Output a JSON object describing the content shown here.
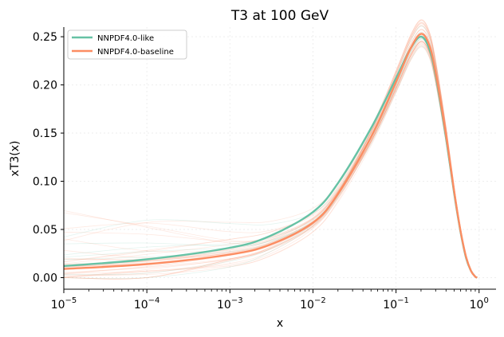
{
  "chart_data": {
    "type": "line",
    "title": "T3 at 100 GeV",
    "xlabel": "x",
    "ylabel": "xT3(x)",
    "x_scale": "log",
    "xlim": [
      1e-05,
      1.6
    ],
    "ylim": [
      -0.012,
      0.26
    ],
    "x_ticks": [
      {
        "value": 1e-05,
        "base": "10",
        "exp": "−5"
      },
      {
        "value": 0.0001,
        "base": "10",
        "exp": "−4"
      },
      {
        "value": 0.001,
        "base": "10",
        "exp": "−3"
      },
      {
        "value": 0.01,
        "base": "10",
        "exp": "−2"
      },
      {
        "value": 0.1,
        "base": "10",
        "exp": "−1"
      },
      {
        "value": 1,
        "base": "10",
        "exp": "0"
      }
    ],
    "y_ticks": [
      {
        "value": 0.0,
        "label": "0.00"
      },
      {
        "value": 0.05,
        "label": "0.05"
      },
      {
        "value": 0.1,
        "label": "0.10"
      },
      {
        "value": 0.15,
        "label": "0.15"
      },
      {
        "value": 0.2,
        "label": "0.20"
      },
      {
        "value": 0.25,
        "label": "0.25"
      }
    ],
    "grid": true,
    "legend_position": "top-left",
    "series": [
      {
        "name": "NNPDF4.0-like",
        "color": "#66c2a5",
        "x": [
          1e-05,
          0.0001,
          0.001,
          0.003,
          0.01,
          0.02,
          0.05,
          0.1,
          0.15,
          0.2,
          0.25,
          0.3,
          0.4,
          0.5,
          0.6,
          0.7,
          0.8,
          0.9,
          0.95
        ],
        "y": [
          0.012,
          0.019,
          0.031,
          0.043,
          0.068,
          0.098,
          0.155,
          0.207,
          0.238,
          0.25,
          0.238,
          0.21,
          0.145,
          0.088,
          0.047,
          0.02,
          0.007,
          0.001,
          0.0
        ]
      },
      {
        "name": "NNPDF4.0-baseline",
        "color": "#fc8d62",
        "x": [
          1e-05,
          0.0001,
          0.001,
          0.003,
          0.01,
          0.02,
          0.05,
          0.1,
          0.15,
          0.2,
          0.25,
          0.3,
          0.4,
          0.5,
          0.6,
          0.7,
          0.8,
          0.9,
          0.95
        ],
        "y": [
          0.009,
          0.014,
          0.024,
          0.034,
          0.057,
          0.087,
          0.146,
          0.203,
          0.238,
          0.253,
          0.242,
          0.213,
          0.148,
          0.09,
          0.048,
          0.021,
          0.007,
          0.001,
          0.0
        ]
      }
    ],
    "replicas_note": "faint replica curves of NNPDF4.0-baseline shown behind the central lines"
  }
}
